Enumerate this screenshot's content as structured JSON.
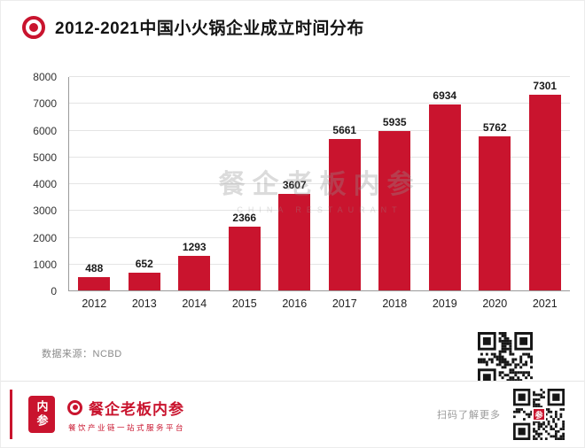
{
  "header": {
    "title": "2012-2021中国小火锅企业成立时间分布"
  },
  "chart_data": {
    "type": "bar",
    "title": "2012-2021中国小火锅企业成立时间分布",
    "categories": [
      "2012",
      "2013",
      "2014",
      "2015",
      "2016",
      "2017",
      "2018",
      "2019",
      "2020",
      "2021"
    ],
    "values": [
      488,
      652,
      1293,
      2366,
      3607,
      5661,
      5935,
      6934,
      5762,
      7301
    ],
    "xlabel": "",
    "ylabel": "",
    "ylim": [
      0,
      8000
    ],
    "ytick_interval": 1000,
    "grid": true,
    "legend": "none",
    "bar_color": "#c9142e",
    "value_labels": true
  },
  "watermark": {
    "line1": "餐企老板内参",
    "line2": "CHINA RESTAURANT"
  },
  "source": {
    "label": "数据来源：NCBD"
  },
  "footer": {
    "seal_text": "内参",
    "brand": "餐企老板内参",
    "tagline": "餐饮产业链一站式服务平台",
    "scan_hint": "扫码了解更多",
    "qr_logo_text": "参"
  },
  "colors": {
    "accent": "#c9142e",
    "grid": "#e4e4e4",
    "axis": "#9a9a9a"
  }
}
